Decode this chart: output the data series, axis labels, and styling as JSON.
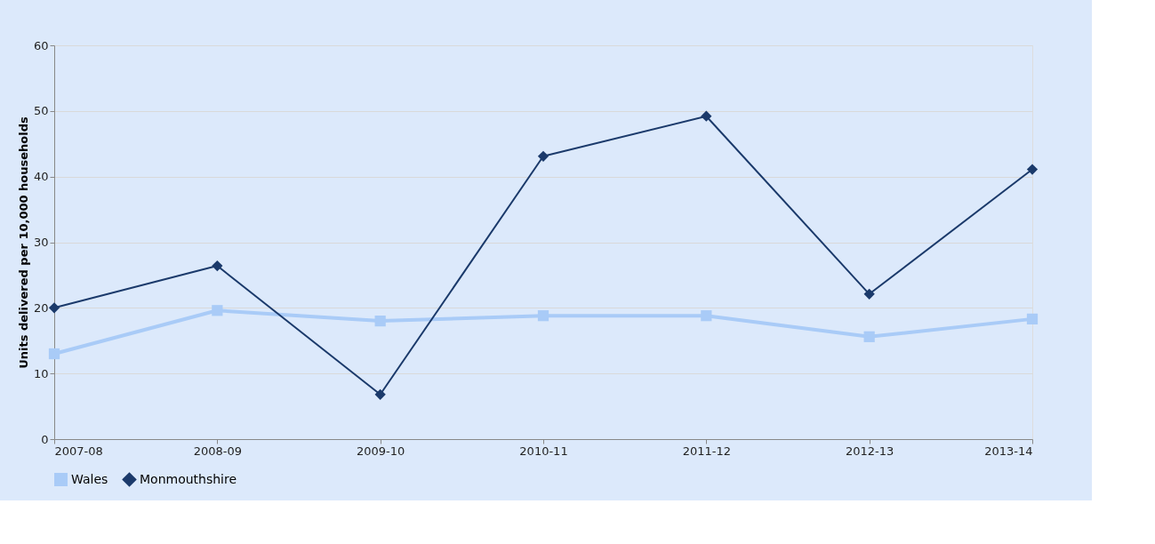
{
  "chart_data": {
    "type": "line",
    "ylabel": "Units delivered per 10,000 households",
    "categories": [
      "2007-08",
      "2008-09",
      "2009-10",
      "2010-11",
      "2011-12",
      "2012-13",
      "2013-14"
    ],
    "series": [
      {
        "name": "Wales",
        "color": "#a9cbf7",
        "marker": "square",
        "values": [
          13.0,
          19.6,
          18.0,
          18.8,
          18.8,
          15.6,
          18.3
        ]
      },
      {
        "name": "Monmouthshire",
        "color": "#1b3a6b",
        "marker": "diamond",
        "values": [
          20.0,
          26.4,
          6.8,
          43.1,
          49.2,
          22.1,
          41.1
        ]
      }
    ],
    "ylim": [
      0,
      60
    ],
    "yticks": [
      0,
      10,
      20,
      30,
      40,
      50,
      60
    ],
    "grid": "y",
    "legend": "bottom"
  }
}
